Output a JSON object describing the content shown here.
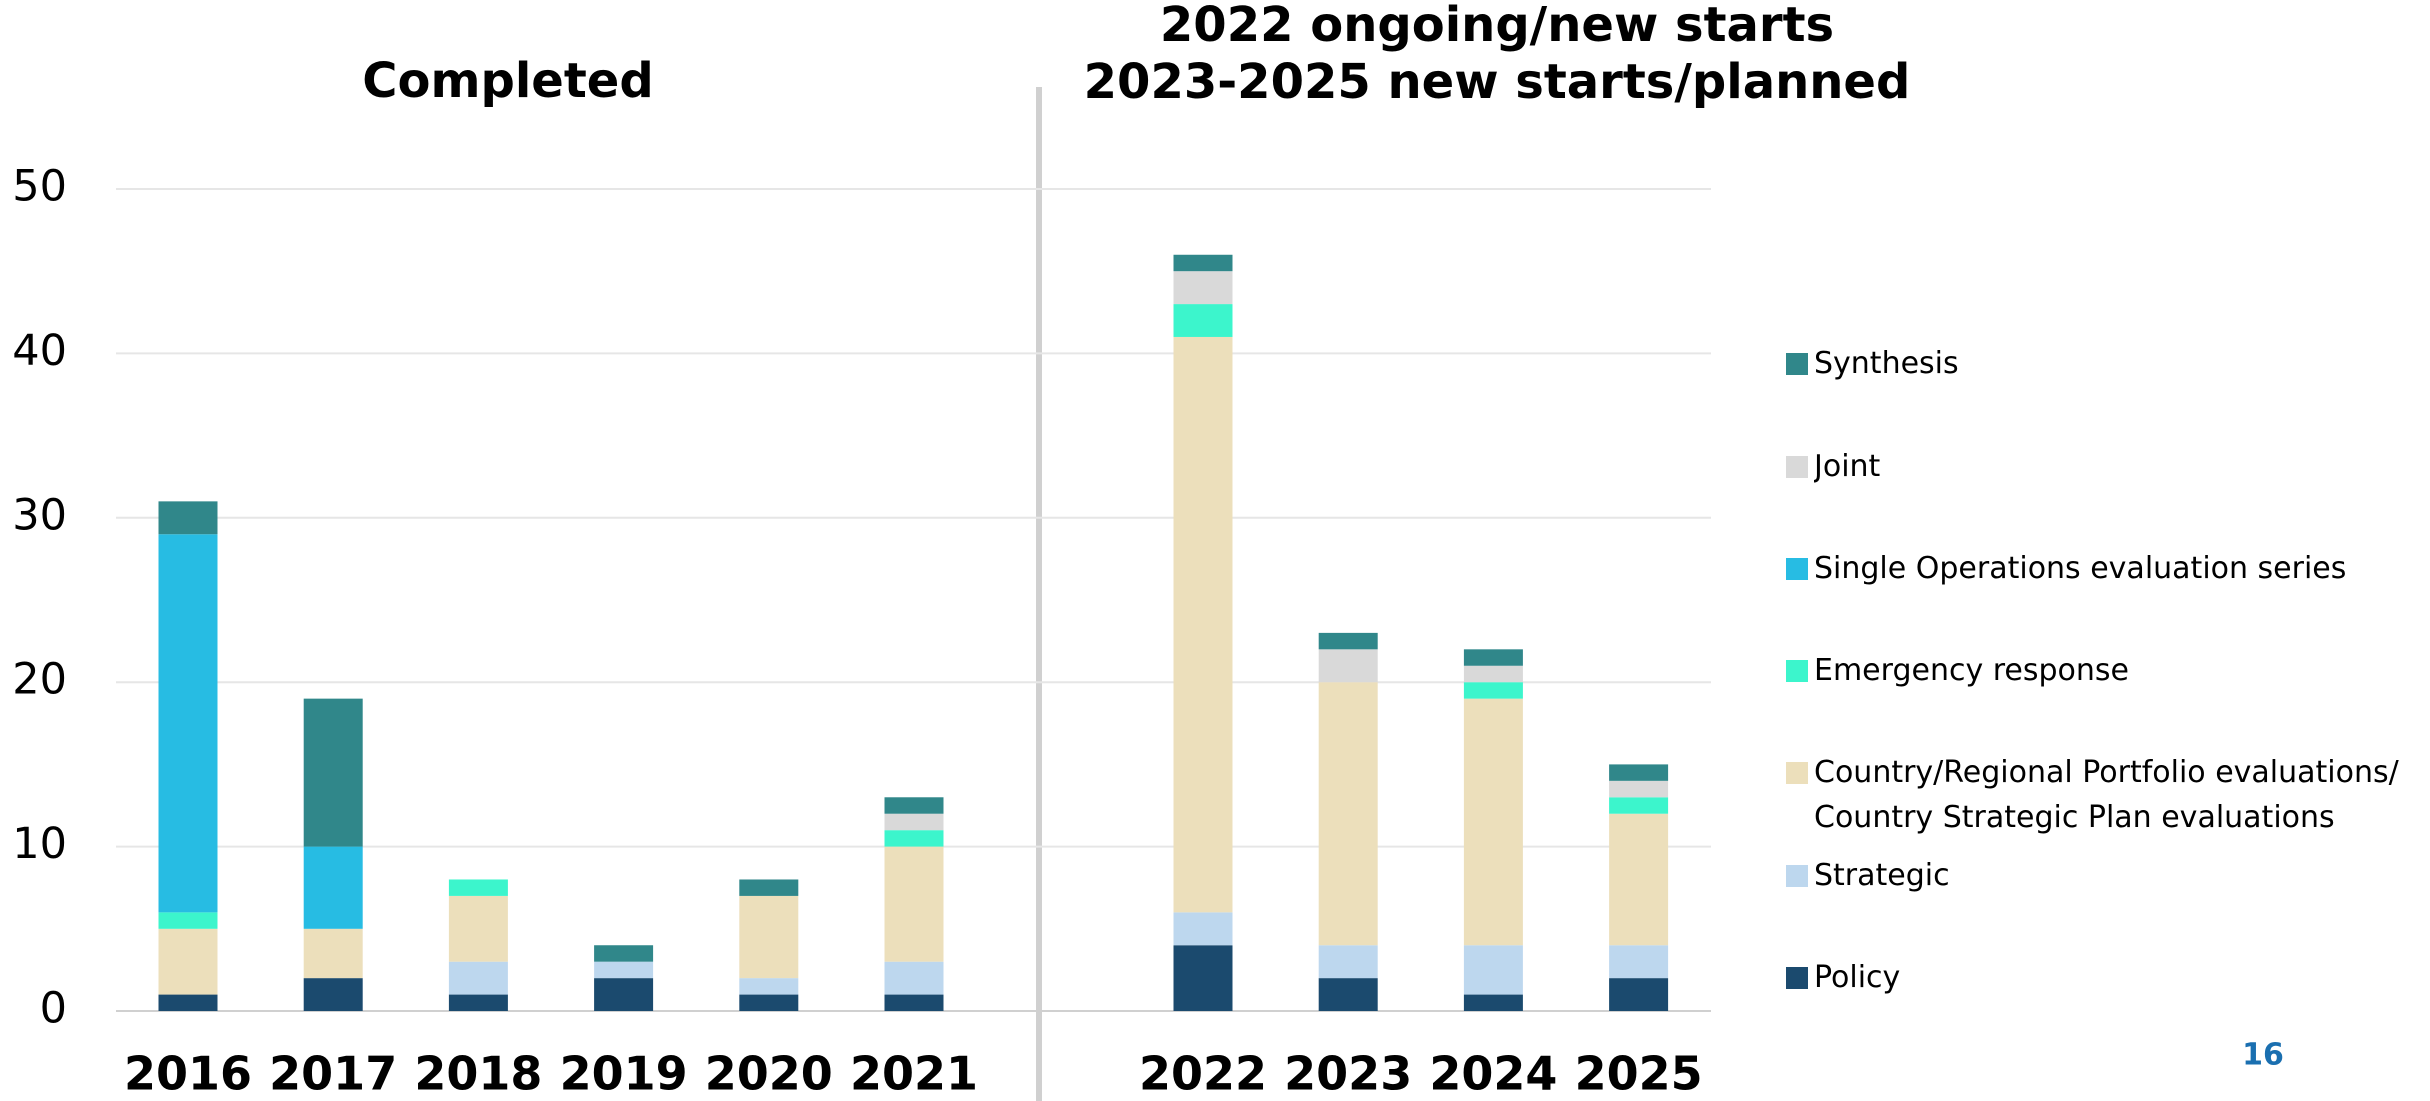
{
  "chart_data": {
    "type": "stacked_bar",
    "panel_titles": [
      [
        "Completed"
      ],
      [
        "2022 ongoing/new starts",
        "2023-2025 new starts/planned"
      ]
    ],
    "categories": [
      "2016",
      "2017",
      "2018",
      "2019",
      "2020",
      "2021",
      "2022",
      "2023",
      "2024",
      "2025"
    ],
    "series": [
      {
        "name": "Policy",
        "color": "#1b4a6e",
        "values": [
          1,
          2,
          1,
          2,
          1,
          1,
          4,
          2,
          1,
          2
        ]
      },
      {
        "name": "Strategic",
        "color": "#bdd7ee",
        "values": [
          0,
          0,
          2,
          1,
          1,
          2,
          2,
          2,
          3,
          2
        ]
      },
      {
        "name": "Country/Regional Portfolio evaluations/ Country Strategic Plan evaluations",
        "color": "#ecdfbb",
        "values": [
          4,
          3,
          4,
          0,
          5,
          7,
          35,
          16,
          15,
          8
        ]
      },
      {
        "name": "Emergency response",
        "color": "#3cf5cc",
        "values": [
          1,
          0,
          1,
          0,
          0,
          1,
          2,
          0,
          1,
          1
        ]
      },
      {
        "name": "Single Operations evaluation series",
        "color": "#27bce3",
        "values": [
          23,
          5,
          0,
          0,
          0,
          0,
          0,
          0,
          0,
          0
        ]
      },
      {
        "name": "Joint",
        "color": "#d9d9d9",
        "values": [
          0,
          0,
          0,
          0,
          0,
          1,
          2,
          2,
          1,
          1
        ]
      },
      {
        "name": "Synthesis",
        "color": "#30878a",
        "values": [
          2,
          9,
          0,
          1,
          1,
          1,
          1,
          1,
          1,
          1
        ]
      }
    ],
    "ylim": [
      0,
      50
    ],
    "yticks": [
      0,
      10,
      20,
      30,
      40,
      50
    ],
    "grid": true,
    "legend": "right"
  },
  "page_number": "16"
}
